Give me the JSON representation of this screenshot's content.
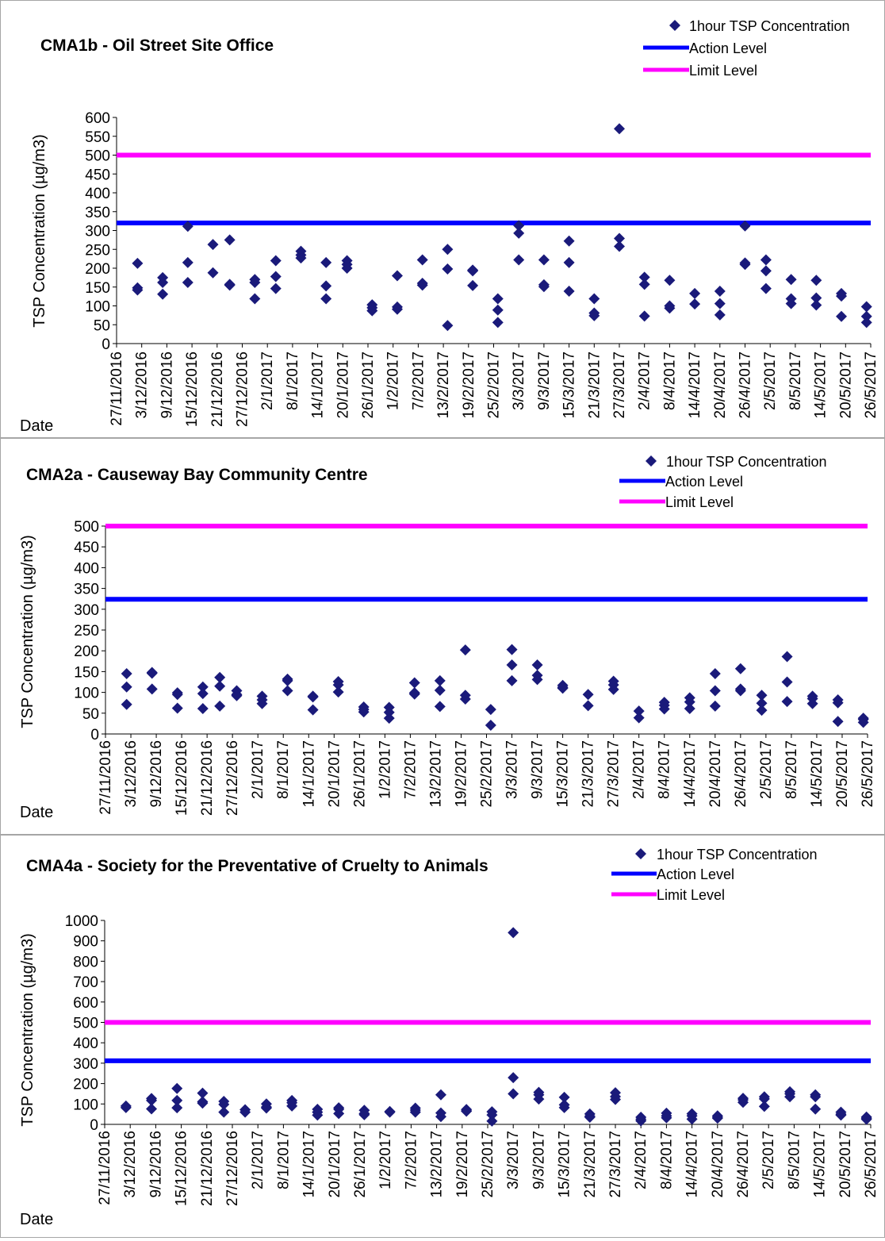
{
  "axis_labels": {
    "y": "TSP Concentration (µg/m3)",
    "x": "Date"
  },
  "legend": {
    "point": "1hour TSP Concentration",
    "action": "Action Level",
    "limit": "Limit Level"
  },
  "colors": {
    "points": "#1a1a7a",
    "action": "#0000ff",
    "limit": "#ff00ff",
    "axis": "#000000"
  },
  "x_ticks": [
    "27/11/2016",
    "3/12/2016",
    "9/12/2016",
    "15/12/2016",
    "21/12/2016",
    "27/12/2016",
    "2/1/2017",
    "8/1/2017",
    "14/1/2017",
    "20/1/2017",
    "26/1/2017",
    "1/2/2017",
    "7/2/2017",
    "13/2/2017",
    "19/2/2017",
    "25/2/2017",
    "3/3/2017",
    "9/3/2017",
    "15/3/2017",
    "21/3/2017",
    "27/3/2017",
    "2/4/2017",
    "8/4/2017",
    "14/4/2017",
    "20/4/2017",
    "26/4/2017",
    "2/5/2017",
    "8/5/2017",
    "14/5/2017",
    "20/5/2017",
    "26/5/2017"
  ],
  "chart_data": [
    {
      "type": "scatter",
      "title": "CMA1b - Oil Street Site Office",
      "xlabel": "Date",
      "ylabel": "TSP Concentration (µg/m3)",
      "ylim": [
        0,
        600
      ],
      "yticks": [
        0,
        50,
        100,
        150,
        200,
        250,
        300,
        350,
        400,
        450,
        500,
        550,
        600
      ],
      "x_range": [
        "27/11/2016",
        "26/5/2017"
      ],
      "action_level": 320,
      "limit_level": 500,
      "series": [
        {
          "name": "1hour TSP Concentration",
          "points": [
            {
              "x": "2/12/2016",
              "y": [
                213,
                148,
                142
              ]
            },
            {
              "x": "8/12/2016",
              "y": [
                175,
                162,
                131
              ]
            },
            {
              "x": "14/12/2016",
              "y": [
                311,
                215,
                162
              ]
            },
            {
              "x": "20/12/2016",
              "y": [
                263,
                188
              ]
            },
            {
              "x": "24/12/2016",
              "y": [
                275,
                157,
                155
              ]
            },
            {
              "x": "30/12/2016",
              "y": [
                170,
                162,
                119
              ]
            },
            {
              "x": "4/1/2017",
              "y": [
                220,
                178,
                146
              ]
            },
            {
              "x": "10/1/2017",
              "y": [
                245,
                235,
                227
              ]
            },
            {
              "x": "16/1/2017",
              "y": [
                215,
                153,
                119
              ]
            },
            {
              "x": "21/1/2017",
              "y": [
                220,
                210,
                200
              ]
            },
            {
              "x": "27/1/2017",
              "y": [
                103,
                95,
                87
              ]
            },
            {
              "x": "2/2/2017",
              "y": [
                180,
                97,
                91
              ]
            },
            {
              "x": "8/2/2017",
              "y": [
                222,
                160,
                155
              ]
            },
            {
              "x": "14/2/2017",
              "y": [
                250,
                198,
                48
              ]
            },
            {
              "x": "20/2/2017",
              "y": [
                195,
                193,
                154
              ]
            },
            {
              "x": "26/2/2017",
              "y": [
                119,
                89,
                56
              ]
            },
            {
              "x": "3/3/2017",
              "y": [
                313,
                293,
                222
              ]
            },
            {
              "x": "9/3/2017",
              "y": [
                222,
                156,
                151
              ]
            },
            {
              "x": "15/3/2017",
              "y": [
                272,
                215,
                139
              ]
            },
            {
              "x": "21/3/2017",
              "y": [
                119,
                81,
                74
              ]
            },
            {
              "x": "27/3/2017",
              "y": [
                570,
                279,
                258
              ]
            },
            {
              "x": "2/4/2017",
              "y": [
                176,
                157,
                73
              ]
            },
            {
              "x": "8/4/2017",
              "y": [
                168,
                100,
                94
              ]
            },
            {
              "x": "14/4/2017",
              "y": [
                133,
                105
              ]
            },
            {
              "x": "20/4/2017",
              "y": [
                139,
                106,
                76
              ]
            },
            {
              "x": "26/4/2017",
              "y": [
                312,
                214,
                210
              ]
            },
            {
              "x": "1/5/2017",
              "y": [
                222,
                193,
                146
              ]
            },
            {
              "x": "7/5/2017",
              "y": [
                170,
                119,
                106
              ]
            },
            {
              "x": "13/5/2017",
              "y": [
                168,
                121,
                102
              ]
            },
            {
              "x": "19/5/2017",
              "y": [
                133,
                126,
                72
              ]
            },
            {
              "x": "25/5/2017",
              "y": [
                98,
                72,
                56
              ]
            }
          ]
        },
        {
          "name": "Action Level",
          "constant": 320
        },
        {
          "name": "Limit Level",
          "constant": 500
        }
      ]
    },
    {
      "type": "scatter",
      "title": "CMA2a - Causeway Bay Community Centre",
      "xlabel": "Date",
      "ylabel": "TSP Concentration (µg/m3)",
      "ylim": [
        0,
        500
      ],
      "yticks": [
        0,
        50,
        100,
        150,
        200,
        250,
        300,
        350,
        400,
        450,
        500
      ],
      "x_range": [
        "27/11/2016",
        "26/5/2017"
      ],
      "action_level": 324,
      "limit_level": 500,
      "series": [
        {
          "name": "1hour TSP Concentration",
          "points": [
            {
              "x": "2/12/2016",
              "y": [
                145,
                113,
                71
              ]
            },
            {
              "x": "8/12/2016",
              "y": [
                148,
                146,
                108
              ]
            },
            {
              "x": "14/12/2016",
              "y": [
                99,
                95,
                62
              ]
            },
            {
              "x": "20/12/2016",
              "y": [
                113,
                97,
                61
              ]
            },
            {
              "x": "24/12/2016",
              "y": [
                136,
                115,
                67
              ]
            },
            {
              "x": "28/12/2016",
              "y": [
                104,
                95,
                92
              ]
            },
            {
              "x": "3/1/2017",
              "y": [
                91,
                82,
                73
              ]
            },
            {
              "x": "9/1/2017",
              "y": [
                132,
                128,
                104
              ]
            },
            {
              "x": "15/1/2017",
              "y": [
                91,
                89,
                58
              ]
            },
            {
              "x": "21/1/2017",
              "y": [
                126,
                118,
                101
              ]
            },
            {
              "x": "27/1/2017",
              "y": [
                65,
                59,
                53
              ]
            },
            {
              "x": "2/2/2017",
              "y": [
                64,
                52,
                38
              ]
            },
            {
              "x": "8/2/2017",
              "y": [
                123,
                99,
                96
              ]
            },
            {
              "x": "14/2/2017",
              "y": [
                128,
                105,
                66
              ]
            },
            {
              "x": "20/2/2017",
              "y": [
                202,
                93,
                84
              ]
            },
            {
              "x": "26/2/2017",
              "y": [
                59,
                21
              ]
            },
            {
              "x": "3/3/2017",
              "y": [
                203,
                166,
                128
              ]
            },
            {
              "x": "9/3/2017",
              "y": [
                166,
                141,
                131
              ]
            },
            {
              "x": "15/3/2017",
              "y": [
                117,
                112,
                110
              ]
            },
            {
              "x": "21/3/2017",
              "y": [
                95,
                68
              ]
            },
            {
              "x": "27/3/2017",
              "y": [
                127,
                118,
                107
              ]
            },
            {
              "x": "2/4/2017",
              "y": [
                55,
                39
              ]
            },
            {
              "x": "8/4/2017",
              "y": [
                76,
                69,
                60
              ]
            },
            {
              "x": "14/4/2017",
              "y": [
                87,
                77,
                61
              ]
            },
            {
              "x": "20/4/2017",
              "y": [
                145,
                104,
                67
              ]
            },
            {
              "x": "26/4/2017",
              "y": [
                157,
                108,
                104
              ]
            },
            {
              "x": "1/5/2017",
              "y": [
                93,
                74,
                57
              ]
            },
            {
              "x": "7/5/2017",
              "y": [
                186,
                125,
                78
              ]
            },
            {
              "x": "13/5/2017",
              "y": [
                91,
                85,
                73
              ]
            },
            {
              "x": "19/5/2017",
              "y": [
                82,
                75,
                30
              ]
            },
            {
              "x": "25/5/2017",
              "y": [
                38,
                35,
                28
              ]
            }
          ]
        },
        {
          "name": "Action Level",
          "constant": 324
        },
        {
          "name": "Limit Level",
          "constant": 500
        }
      ]
    },
    {
      "type": "scatter",
      "title": "CMA4a - Society for the Preventative  of Cruelty to Animals",
      "xlabel": "Date",
      "ylabel": "TSP Concentration (µg/m3)",
      "ylim": [
        0,
        1000
      ],
      "yticks": [
        0,
        100,
        200,
        300,
        400,
        500,
        600,
        700,
        800,
        900,
        1000
      ],
      "x_range": [
        "27/11/2016",
        "26/5/2017"
      ],
      "action_level": 312,
      "limit_level": 500,
      "series": [
        {
          "name": "1hour TSP Concentration",
          "points": [
            {
              "x": "2/12/2016",
              "y": [
                90,
                82
              ]
            },
            {
              "x": "8/12/2016",
              "y": [
                127,
                117,
                76
              ]
            },
            {
              "x": "14/12/2016",
              "y": [
                176,
                117,
                81
              ]
            },
            {
              "x": "20/12/2016",
              "y": [
                153,
                111,
                104
              ]
            },
            {
              "x": "25/12/2016",
              "y": [
                113,
                98,
                60
              ]
            },
            {
              "x": "30/12/2016",
              "y": [
                72,
                60
              ]
            },
            {
              "x": "4/1/2017",
              "y": [
                100,
                85,
                80
              ]
            },
            {
              "x": "10/1/2017",
              "y": [
                117,
                106,
                90
              ]
            },
            {
              "x": "16/1/2017",
              "y": [
                74,
                60,
                45
              ]
            },
            {
              "x": "21/1/2017",
              "y": [
                81,
                74,
                53
              ]
            },
            {
              "x": "27/1/2017",
              "y": [
                69,
                53,
                47
              ]
            },
            {
              "x": "2/2/2017",
              "y": [
                63,
                60
              ]
            },
            {
              "x": "8/2/2017",
              "y": [
                80,
                70,
                60
              ]
            },
            {
              "x": "14/2/2017",
              "y": [
                145,
                56,
                38
              ]
            },
            {
              "x": "20/2/2017",
              "y": [
                73,
                66,
                64
              ]
            },
            {
              "x": "26/2/2017",
              "y": [
                62,
                46,
                16
              ]
            },
            {
              "x": "3/3/2017",
              "y": [
                940,
                229,
                150
              ]
            },
            {
              "x": "9/3/2017",
              "y": [
                157,
                145,
                124
              ]
            },
            {
              "x": "15/3/2017",
              "y": [
                133,
                96,
                82
              ]
            },
            {
              "x": "21/3/2017",
              "y": [
                51,
                40,
                35
              ]
            },
            {
              "x": "27/3/2017",
              "y": [
                155,
                136,
                122
              ]
            },
            {
              "x": "2/4/2017",
              "y": [
                35,
                25,
                17
              ]
            },
            {
              "x": "8/4/2017",
              "y": [
                55,
                42,
                32
              ]
            },
            {
              "x": "14/4/2017",
              "y": [
                52,
                42,
                26
              ]
            },
            {
              "x": "20/4/2017",
              "y": [
                42,
                35,
                30
              ]
            },
            {
              "x": "26/4/2017",
              "y": [
                128,
                120,
                108
              ]
            },
            {
              "x": "1/5/2017",
              "y": [
                135,
                125,
                88
              ]
            },
            {
              "x": "7/5/2017",
              "y": [
                160,
                150,
                135
              ]
            },
            {
              "x": "13/5/2017",
              "y": [
                145,
                135,
                75
              ]
            },
            {
              "x": "19/5/2017",
              "y": [
                60,
                50,
                45
              ]
            },
            {
              "x": "25/5/2017",
              "y": [
                36,
                30,
                25
              ]
            }
          ]
        },
        {
          "name": "Action Level",
          "constant": 312
        },
        {
          "name": "Limit Level",
          "constant": 500
        }
      ]
    }
  ]
}
